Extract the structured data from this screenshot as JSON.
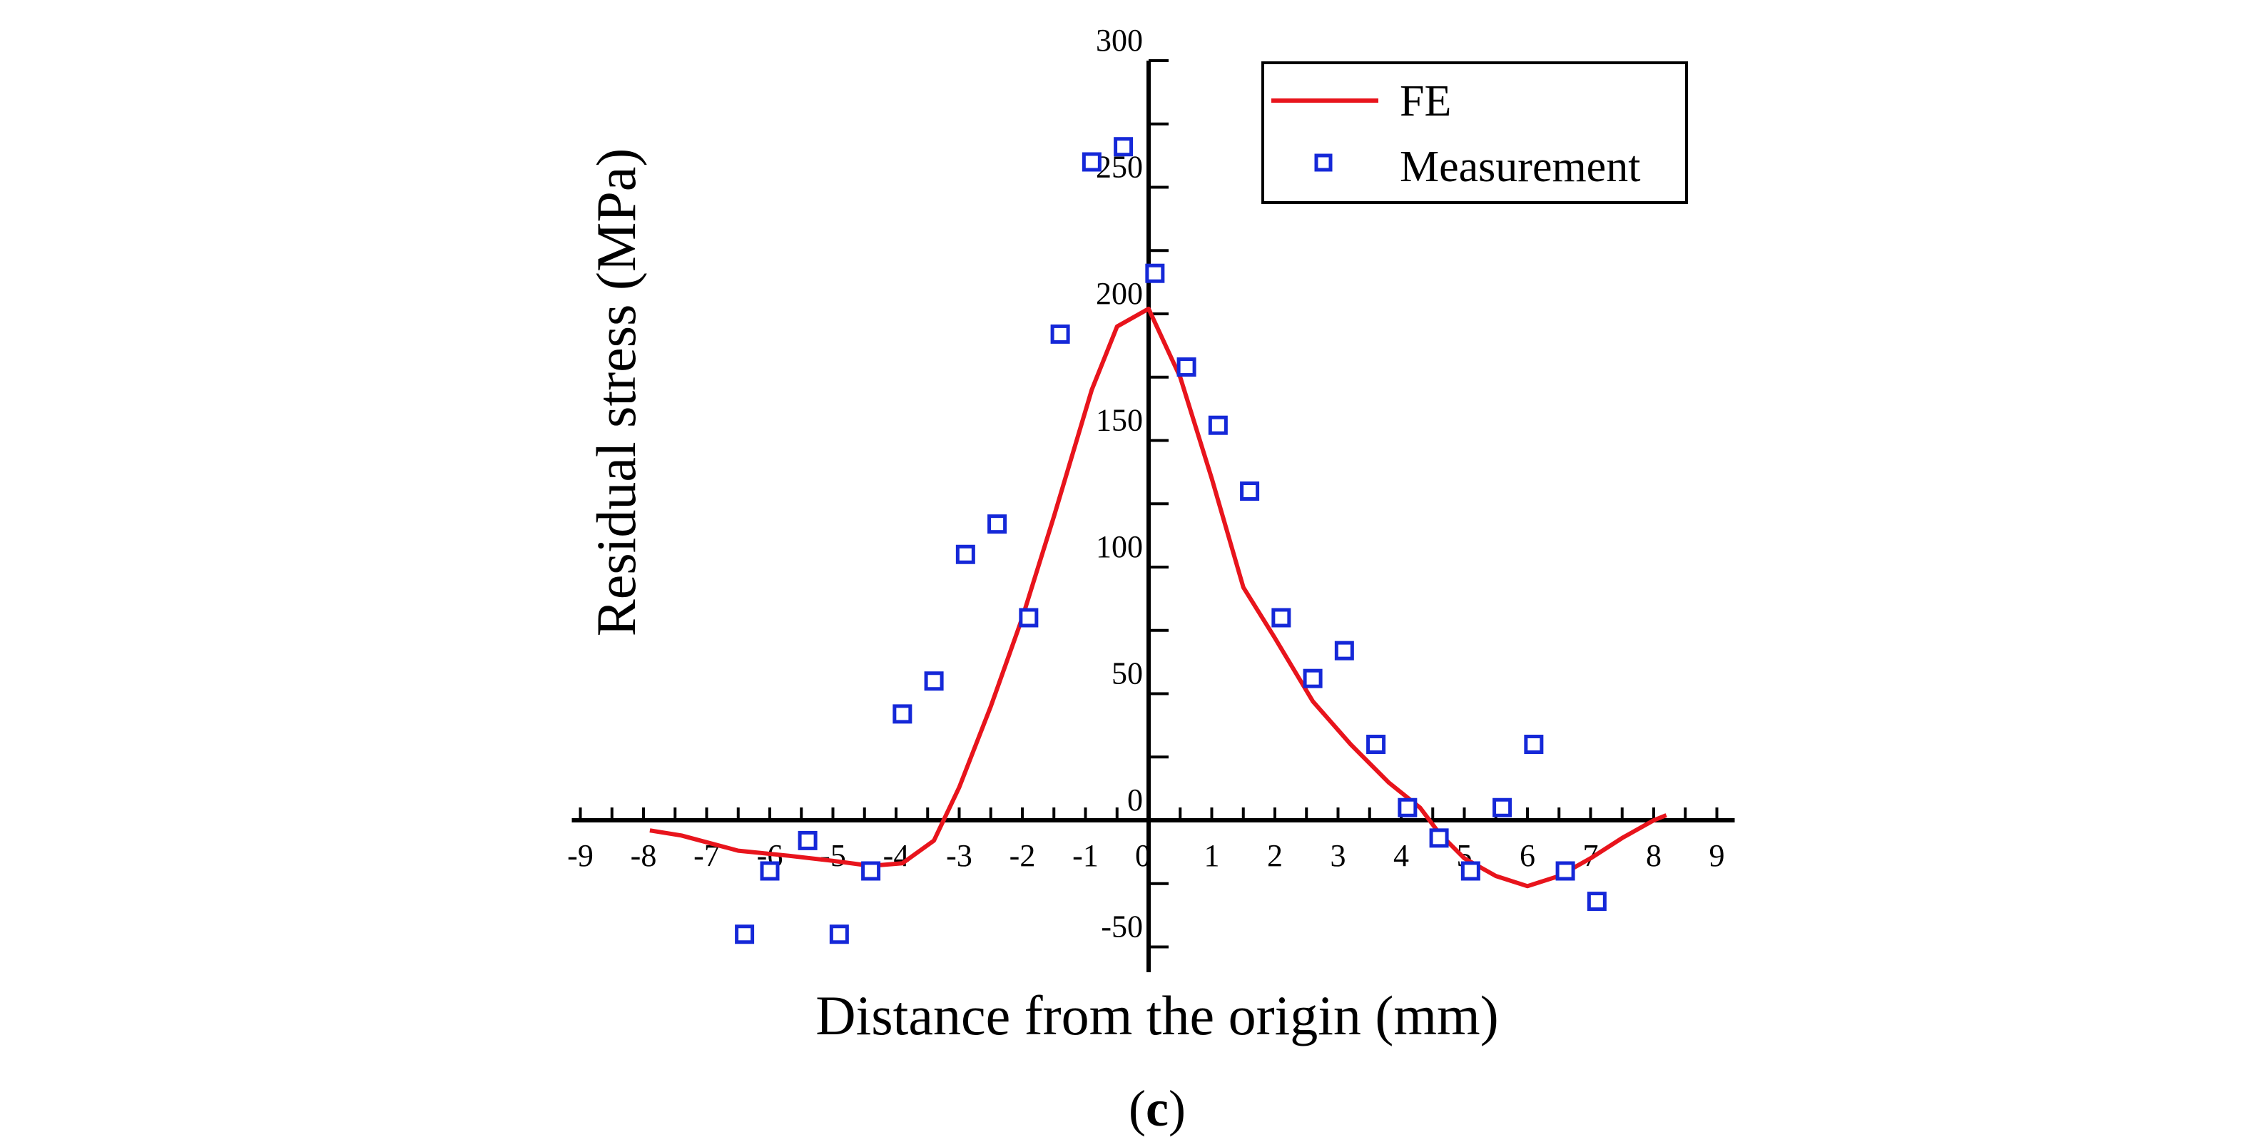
{
  "chart_data": {
    "type": "line",
    "title": "",
    "xlabel": "Distance from the origin  (mm)",
    "ylabel": "Residual stress  (MPa)",
    "panel_label": "c",
    "xlim": [
      -9,
      9
    ],
    "ylim": [
      -60,
      300
    ],
    "x_ticks": [
      -9,
      -8,
      -7,
      -6,
      -5,
      -4,
      -3,
      -2,
      -1,
      0,
      1,
      2,
      3,
      4,
      5,
      6,
      7,
      8,
      9
    ],
    "y_ticks": [
      -50,
      0,
      50,
      100,
      150,
      200,
      250,
      300
    ],
    "colors": {
      "fe": "#e8141c",
      "measurement": "#1528d8",
      "axis": "#000000"
    },
    "series": [
      {
        "name": "FE",
        "style": "line",
        "x": [
          -7.9,
          -7.4,
          -6.5,
          -5.7,
          -5.0,
          -4.4,
          -3.9,
          -3.4,
          -3.0,
          -2.5,
          -2.0,
          -1.5,
          -0.9,
          -0.5,
          0.0,
          0.5,
          1.0,
          1.5,
          2.0,
          2.6,
          3.2,
          3.8,
          4.3,
          4.6,
          5.0,
          5.5,
          6.0,
          6.5,
          7.0,
          7.5,
          8.0,
          8.2
        ],
        "y": [
          -4,
          -6,
          -12,
          -14,
          -16,
          -18,
          -17,
          -8,
          13,
          45,
          80,
          120,
          170,
          195,
          202,
          175,
          135,
          92,
          72,
          47,
          30,
          15,
          5,
          -5,
          -15,
          -22,
          -26,
          -22,
          -15,
          -7,
          0,
          2
        ]
      },
      {
        "name": "Measurement",
        "style": "scatter",
        "x": [
          -6.4,
          -6.0,
          -5.4,
          -4.9,
          -4.4,
          -3.9,
          -3.4,
          -2.9,
          -2.4,
          -1.9,
          -1.4,
          -0.9,
          -0.4,
          0.1,
          0.6,
          1.1,
          1.6,
          2.1,
          2.6,
          3.1,
          3.6,
          4.1,
          4.6,
          5.1,
          5.6,
          6.1,
          6.6,
          7.1
        ],
        "y": [
          -45,
          -20,
          -8,
          -45,
          -20,
          42,
          55,
          105,
          117,
          80,
          192,
          260,
          266,
          216,
          179,
          156,
          130,
          80,
          56,
          67,
          30,
          5,
          -7,
          -20,
          5,
          30,
          -20,
          -32
        ]
      }
    ],
    "legend": {
      "position": "top-right",
      "entries": [
        "FE",
        "Measurement"
      ]
    }
  }
}
